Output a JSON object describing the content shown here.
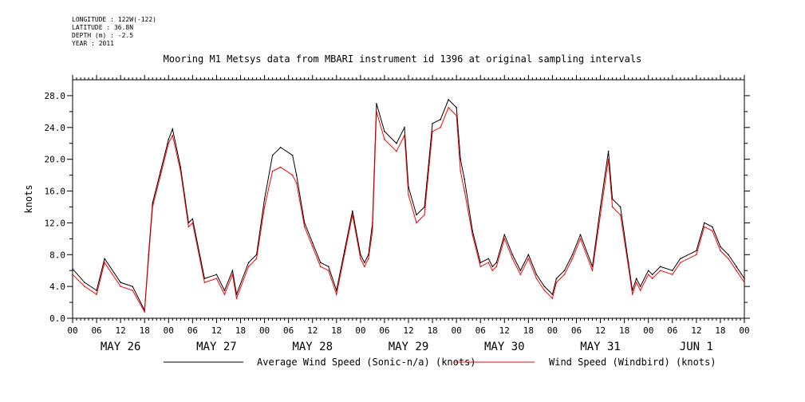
{
  "metadata": {
    "longitude": "LONGITUDE : 122W(-122)",
    "latitude": "LATITUDE : 36.8N",
    "depth": "DEPTH (m) : -2.5",
    "year": "YEAR : 2011"
  },
  "chart_data": {
    "type": "line",
    "title": "Mooring M1 Metsys data from MBARI instrument id 1396 at original sampling intervals",
    "xlabel": "",
    "ylabel": "knots",
    "ylim": [
      0,
      30
    ],
    "xlim_hours": [
      0,
      168
    ],
    "y_ticks": [
      "0.0",
      "4.0",
      "8.0",
      "12.0",
      "16.0",
      "20.0",
      "24.0",
      "28.0"
    ],
    "x_hour_labels": [
      "00",
      "06",
      "12",
      "18"
    ],
    "x_day_labels": [
      "MAY 26",
      "MAY 27",
      "MAY 28",
      "MAY 29",
      "MAY 30",
      "MAY 31",
      "JUN  1"
    ],
    "legend_position": "bottom",
    "series": [
      {
        "name": "Average Wind Speed (Sonic-n/a) (knots)",
        "color": "#000000",
        "x": [
          0,
          3,
          6,
          8,
          12,
          15,
          18,
          19,
          20,
          22,
          24,
          25,
          27,
          29,
          30,
          33,
          36,
          38,
          40,
          41,
          44,
          46,
          48,
          50,
          52,
          55,
          56,
          58,
          60,
          62,
          64,
          66,
          68,
          70,
          72,
          73,
          74,
          75,
          76,
          78,
          81,
          83,
          84,
          86,
          88,
          90,
          92,
          94,
          96,
          97,
          98,
          100,
          102,
          104,
          105,
          106,
          108,
          110,
          112,
          114,
          116,
          118,
          120,
          121,
          123,
          125,
          127,
          130,
          132,
          134,
          135,
          137,
          139,
          140,
          141,
          142,
          144,
          145,
          147,
          150,
          152,
          156,
          158,
          160,
          162,
          164,
          166,
          168
        ],
        "y": [
          6.2,
          4.5,
          3.5,
          7.5,
          4.5,
          4.0,
          1.0,
          8.0,
          14.5,
          18.5,
          22.5,
          23.8,
          19.0,
          12.0,
          12.5,
          5.0,
          5.5,
          3.5,
          6.0,
          3.0,
          7.0,
          8.0,
          15.0,
          20.5,
          21.5,
          20.5,
          18.0,
          12.0,
          9.5,
          7.0,
          6.5,
          3.5,
          8.5,
          13.5,
          8.0,
          7.0,
          8.0,
          12.0,
          27.0,
          23.5,
          22.0,
          24.0,
          16.5,
          13.0,
          14.0,
          24.5,
          25.0,
          27.5,
          26.5,
          20.0,
          17.5,
          11.0,
          7.0,
          7.5,
          6.5,
          7.0,
          10.5,
          8.0,
          6.0,
          8.0,
          5.5,
          4.0,
          3.0,
          5.0,
          6.0,
          8.0,
          10.5,
          6.5,
          14.0,
          21.0,
          15.0,
          14.0,
          7.0,
          3.5,
          5.0,
          4.0,
          6.0,
          5.5,
          6.5,
          6.0,
          7.5,
          8.5,
          12.0,
          11.5,
          9.0,
          8.0,
          6.5,
          5.0
        ]
      },
      {
        "name": "Wind Speed (Windbird) (knots)",
        "color": "#ff0000",
        "x": [
          0,
          3,
          6,
          8,
          12,
          15,
          18,
          19,
          20,
          22,
          24,
          25,
          27,
          29,
          30,
          33,
          36,
          38,
          40,
          41,
          44,
          46,
          48,
          50,
          52,
          55,
          56,
          58,
          60,
          62,
          64,
          66,
          68,
          70,
          72,
          73,
          74,
          75,
          76,
          78,
          81,
          83,
          84,
          86,
          88,
          90,
          92,
          94,
          96,
          97,
          98,
          100,
          102,
          104,
          105,
          106,
          108,
          110,
          112,
          114,
          116,
          118,
          120,
          121,
          123,
          125,
          127,
          130,
          132,
          134,
          135,
          137,
          139,
          140,
          141,
          142,
          144,
          145,
          147,
          150,
          152,
          156,
          158,
          160,
          162,
          164,
          166,
          168
        ],
        "y": [
          5.5,
          4.0,
          3.0,
          7.0,
          4.0,
          3.5,
          0.8,
          7.5,
          14.0,
          18.0,
          22.0,
          23.0,
          18.5,
          11.5,
          12.0,
          4.5,
          5.0,
          3.0,
          5.5,
          2.5,
          6.5,
          7.5,
          14.0,
          18.5,
          19.0,
          18.0,
          17.0,
          11.5,
          9.0,
          6.5,
          6.0,
          3.0,
          8.0,
          13.0,
          7.5,
          6.5,
          7.5,
          11.0,
          26.0,
          22.5,
          21.0,
          23.0,
          15.5,
          12.0,
          13.0,
          23.5,
          24.0,
          26.5,
          25.5,
          18.5,
          16.0,
          10.5,
          6.5,
          7.0,
          6.0,
          6.5,
          10.0,
          7.5,
          5.5,
          7.5,
          5.0,
          3.5,
          2.5,
          4.5,
          5.5,
          7.5,
          10.0,
          6.0,
          13.0,
          20.0,
          14.0,
          13.0,
          6.5,
          3.0,
          4.5,
          3.5,
          5.5,
          5.0,
          6.0,
          5.5,
          7.0,
          8.0,
          11.5,
          11.0,
          8.5,
          7.5,
          6.0,
          4.5
        ]
      }
    ]
  }
}
